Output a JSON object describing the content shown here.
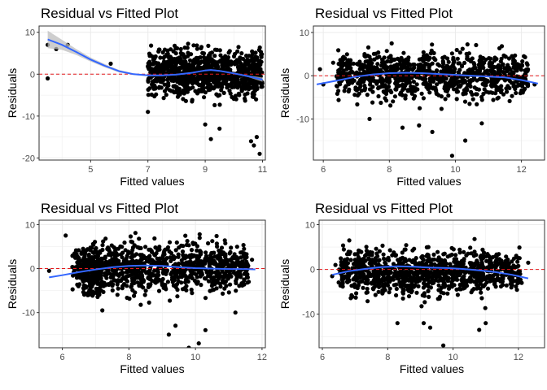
{
  "chart_data": [
    {
      "type": "scatter",
      "title": "Residual vs Fitted Plot",
      "xlabel": "Fitted values",
      "ylabel": "Residuals",
      "xlim": [
        3.2,
        11.1
      ],
      "ylim": [
        -20.5,
        11.5
      ],
      "x_ticks": [
        5,
        7,
        9,
        11
      ],
      "y_ticks": [
        10,
        0,
        -10,
        -20
      ],
      "point_color": "#000000",
      "reference_line": {
        "y": 0,
        "color": "#e41a1c",
        "style": "dashed"
      },
      "smooth": {
        "color": "#3366ff",
        "band_color": "#bebebe",
        "x": [
          3.5,
          4.0,
          4.5,
          5.0,
          5.5,
          6.0,
          6.5,
          7.0,
          7.5,
          8.0,
          8.5,
          9.0,
          9.2,
          9.5,
          10.0,
          10.5,
          11.0
        ],
        "y": [
          8.3,
          7.0,
          5.3,
          3.5,
          2.0,
          0.7,
          0.0,
          -0.3,
          -0.3,
          -0.1,
          0.3,
          0.9,
          1.0,
          0.8,
          0.2,
          -0.5,
          -1.3
        ],
        "band_lo": [
          6.2,
          5.8,
          4.6,
          3.0,
          1.6,
          0.4,
          -0.2,
          -0.5,
          -0.45,
          -0.25,
          0.15,
          0.75,
          0.85,
          0.65,
          0.05,
          -0.7,
          -1.8
        ],
        "band_hi": [
          10.4,
          8.2,
          6.0,
          4.0,
          2.4,
          1.0,
          0.2,
          -0.1,
          -0.15,
          0.05,
          0.45,
          1.05,
          1.15,
          0.95,
          0.35,
          -0.3,
          -0.8
        ]
      },
      "outliers": {
        "x": [
          3.5,
          3.5,
          3.8,
          4.2,
          5.7,
          7.1,
          7.0,
          9.0,
          9.5,
          10.6,
          10.8,
          10.7,
          10.9,
          9.2
        ],
        "y": [
          7.0,
          -1.0,
          6.0,
          7.0,
          2.5,
          1.3,
          -9.0,
          -12.0,
          -13.0,
          -16.0,
          -15.0,
          -17.0,
          -19.0,
          -15.5
        ]
      },
      "clusters": [
        {
          "x_min": 7.0,
          "x_max": 11.0,
          "y_min": -7.5,
          "y_max": 8.5,
          "n": 850
        },
        {
          "x_min": 7.5,
          "x_max": 10.8,
          "y_min": -11,
          "y_max": 9.5,
          "n": 120
        }
      ]
    },
    {
      "type": "scatter",
      "title": "Residual vs Fitted Plot",
      "xlabel": "Fitted values",
      "ylabel": "Residuals",
      "xlim": [
        5.7,
        12.7
      ],
      "ylim": [
        -19.5,
        11.5
      ],
      "x_ticks": [
        6,
        8,
        10,
        12
      ],
      "y_ticks": [
        10,
        0,
        -10
      ],
      "point_color": "#000000",
      "reference_line": {
        "y": 0,
        "color": "#e41a1c",
        "style": "dashed"
      },
      "smooth": {
        "color": "#3366ff",
        "x": [
          5.8,
          6.5,
          7.0,
          7.5,
          8.0,
          8.5,
          9.0,
          9.5,
          10.0,
          10.5,
          11.0,
          11.5,
          12.0,
          12.5
        ],
        "y": [
          -2.0,
          -1.0,
          -0.2,
          0.3,
          0.6,
          0.7,
          0.6,
          0.4,
          0.2,
          0.0,
          -0.2,
          -0.4,
          -1.0,
          -1.8
        ]
      },
      "outliers": {
        "x": [
          5.9,
          6.0,
          6.3,
          8.4,
          9.3,
          9.9,
          10.3,
          10.8,
          12.1,
          12.4,
          8.9,
          7.4
        ],
        "y": [
          1.5,
          -2.0,
          3.0,
          -12.0,
          -13.0,
          -18.5,
          -15.0,
          -11.0,
          -3.0,
          -2.0,
          -11.5,
          -10.0
        ]
      },
      "clusters": [
        {
          "x_min": 6.4,
          "x_max": 12.2,
          "y_min": -7.5,
          "y_max": 8.0,
          "n": 900
        },
        {
          "x_min": 7.0,
          "x_max": 11.5,
          "y_min": -10.5,
          "y_max": 9.5,
          "n": 120
        }
      ]
    },
    {
      "type": "scatter",
      "title": "Residual vs Fitted Plot",
      "xlabel": "Fitted values",
      "ylabel": "Residuals",
      "xlim": [
        5.3,
        12.1
      ],
      "ylim": [
        -18.0,
        11.0
      ],
      "x_ticks": [
        6,
        8,
        10,
        12
      ],
      "y_ticks": [
        10,
        0,
        -10
      ],
      "point_color": "#000000",
      "reference_line": {
        "y": 0,
        "color": "#e41a1c",
        "style": "dashed"
      },
      "smooth": {
        "color": "#3366ff",
        "x": [
          5.6,
          6.0,
          6.5,
          7.0,
          7.5,
          8.0,
          8.5,
          9.0,
          9.5,
          10.0,
          10.5,
          11.0,
          11.5,
          11.8
        ],
        "y": [
          -2.0,
          -1.5,
          -0.8,
          -0.2,
          0.3,
          0.6,
          0.7,
          0.6,
          0.3,
          0.1,
          0.0,
          -0.1,
          -0.1,
          -0.2
        ]
      },
      "outliers": {
        "x": [
          5.6,
          6.1,
          6.5,
          9.2,
          9.4,
          9.8,
          10.1,
          10.3,
          11.6,
          11.7,
          11.2,
          7.2
        ],
        "y": [
          -0.5,
          7.5,
          2.0,
          -15.0,
          -13.0,
          -18.0,
          -17.0,
          -14.0,
          -3.0,
          2.0,
          -10.0,
          -9.5
        ]
      },
      "clusters": [
        {
          "x_min": 6.3,
          "x_max": 11.6,
          "y_min": -7.5,
          "y_max": 8.5,
          "n": 900
        },
        {
          "x_min": 6.6,
          "x_max": 7.2,
          "y_min": -9.5,
          "y_max": 6.0,
          "n": 150
        },
        {
          "x_min": 7.0,
          "x_max": 11.0,
          "y_min": -11,
          "y_max": 9.5,
          "n": 100
        }
      ]
    },
    {
      "type": "scatter",
      "title": "Residual vs Fitted Plot",
      "xlabel": "Fitted values",
      "ylabel": "Residuals",
      "xlim": [
        5.9,
        12.8
      ],
      "ylim": [
        -17.5,
        11.0
      ],
      "x_ticks": [
        6,
        8,
        10,
        12
      ],
      "y_ticks": [
        10,
        0,
        -10
      ],
      "point_color": "#000000",
      "reference_line": {
        "y": 0,
        "color": "#e41a1c",
        "style": "dashed"
      },
      "smooth": {
        "color": "#3366ff",
        "x": [
          6.3,
          6.8,
          7.3,
          7.8,
          8.3,
          8.8,
          9.3,
          9.8,
          10.3,
          10.8,
          11.3,
          11.8,
          12.3
        ],
        "y": [
          -1.2,
          -0.4,
          0.1,
          0.5,
          0.7,
          0.6,
          0.4,
          0.3,
          0.1,
          -0.2,
          -0.6,
          -1.2,
          -2.0
        ]
      },
      "outliers": {
        "x": [
          6.3,
          6.4,
          8.3,
          9.3,
          9.7,
          10.8,
          11.0,
          12.1,
          12.3,
          9.1
        ],
        "y": [
          -1.5,
          1.0,
          -12.0,
          -13.0,
          -17.0,
          -13.5,
          -12.0,
          -3.0,
          1.5,
          -12.0
        ]
      },
      "clusters": [
        {
          "x_min": 6.5,
          "x_max": 12.1,
          "y_min": -8.0,
          "y_max": 7.0,
          "n": 900
        },
        {
          "x_min": 7.0,
          "x_max": 11.5,
          "y_min": -11,
          "y_max": 9.0,
          "n": 120
        }
      ]
    }
  ]
}
